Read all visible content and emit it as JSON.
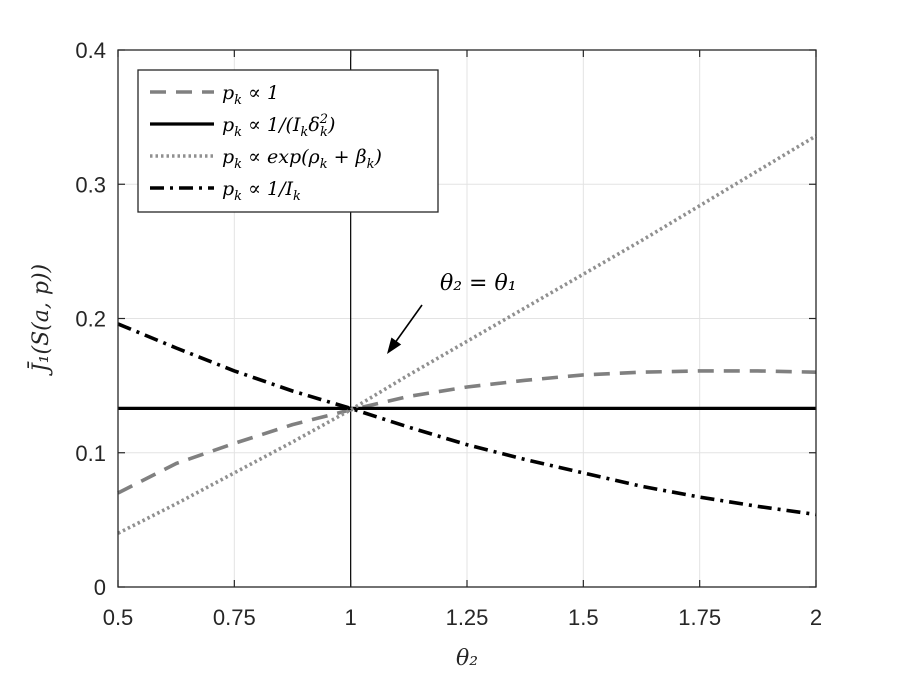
{
  "chart_data": {
    "type": "line",
    "xlabel": "θ₂",
    "ylabel": "J̄₁(S(a, p))",
    "xlim": [
      0.5,
      2
    ],
    "ylim": [
      0,
      0.4
    ],
    "xticks": [
      {
        "value": 0.5,
        "label": "0.5"
      },
      {
        "value": 0.75,
        "label": "0.75"
      },
      {
        "value": 1,
        "label": "1"
      },
      {
        "value": 1.25,
        "label": "1.25"
      },
      {
        "value": 1.5,
        "label": "1.5"
      },
      {
        "value": 1.75,
        "label": "1.75"
      },
      {
        "value": 2,
        "label": "2"
      }
    ],
    "yticks": [
      {
        "value": 0,
        "label": "0"
      },
      {
        "value": 0.1,
        "label": "0.1"
      },
      {
        "value": 0.2,
        "label": "0.2"
      },
      {
        "value": 0.3,
        "label": "0.3"
      },
      {
        "value": 0.4,
        "label": "0.4"
      }
    ],
    "grid": true,
    "legend_position": "top-left",
    "vertical_reference_line": {
      "x": 1,
      "color": "#000000"
    },
    "annotation": {
      "text": "θ₂ = θ₁",
      "arrow_from": [
        1.12,
        0.187
      ],
      "arrow_to": [
        1.06,
        0.173
      ]
    },
    "series": [
      {
        "name": "p_k ∝ 1",
        "style": "dashed",
        "color": "#808080",
        "x": [
          0.5,
          0.625,
          0.75,
          0.875,
          1.0,
          1.125,
          1.25,
          1.375,
          1.5,
          1.625,
          1.75,
          1.875,
          2.0
        ],
        "y": [
          0.07,
          0.092,
          0.107,
          0.121,
          0.132,
          0.142,
          0.149,
          0.154,
          0.158,
          0.16,
          0.161,
          0.161,
          0.16
        ]
      },
      {
        "name": "p_k ∝ 1/(I_k δ_k²)",
        "style": "solid",
        "color": "#000000",
        "x": [
          0.5,
          2.0
        ],
        "y": [
          0.133,
          0.133
        ]
      },
      {
        "name": "p_k ∝ exp(ρ_k + β_k)",
        "style": "dotted",
        "color": "#909090",
        "x": [
          0.5,
          0.625,
          0.75,
          0.875,
          1.0,
          1.125,
          1.25,
          1.375,
          1.5,
          1.625,
          1.75,
          1.875,
          2.0
        ],
        "y": [
          0.04,
          0.062,
          0.085,
          0.108,
          0.132,
          0.158,
          0.183,
          0.208,
          0.233,
          0.258,
          0.284,
          0.31,
          0.336
        ]
      },
      {
        "name": "p_k ∝ 1/I_k",
        "style": "dashdot",
        "color": "#000000",
        "x": [
          0.5,
          0.625,
          0.75,
          0.875,
          1.0,
          1.125,
          1.25,
          1.375,
          1.5,
          1.625,
          1.75,
          1.875,
          2.0
        ],
        "y": [
          0.196,
          0.178,
          0.161,
          0.146,
          0.133,
          0.119,
          0.106,
          0.095,
          0.085,
          0.075,
          0.067,
          0.06,
          0.054
        ]
      }
    ]
  },
  "legend": {
    "items": [
      {
        "base": "p",
        "sub": "k",
        "rest": " ∝ 1"
      },
      {
        "base": "p",
        "sub": "k",
        "rest": " ∝ 1/(I",
        "sub2": "k",
        "rest2": "δ",
        "sup3": "2",
        "sub3": "k",
        "rest3": ")"
      },
      {
        "base": "p",
        "sub": "k",
        "rest": " ∝ exp(ρ",
        "sub2": "k",
        "rest2": " + β",
        "sub3": "k",
        "rest3": ")"
      },
      {
        "base": "p",
        "sub": "k",
        "rest": " ∝ 1/I",
        "sub2": "k",
        "rest2": ""
      }
    ]
  }
}
